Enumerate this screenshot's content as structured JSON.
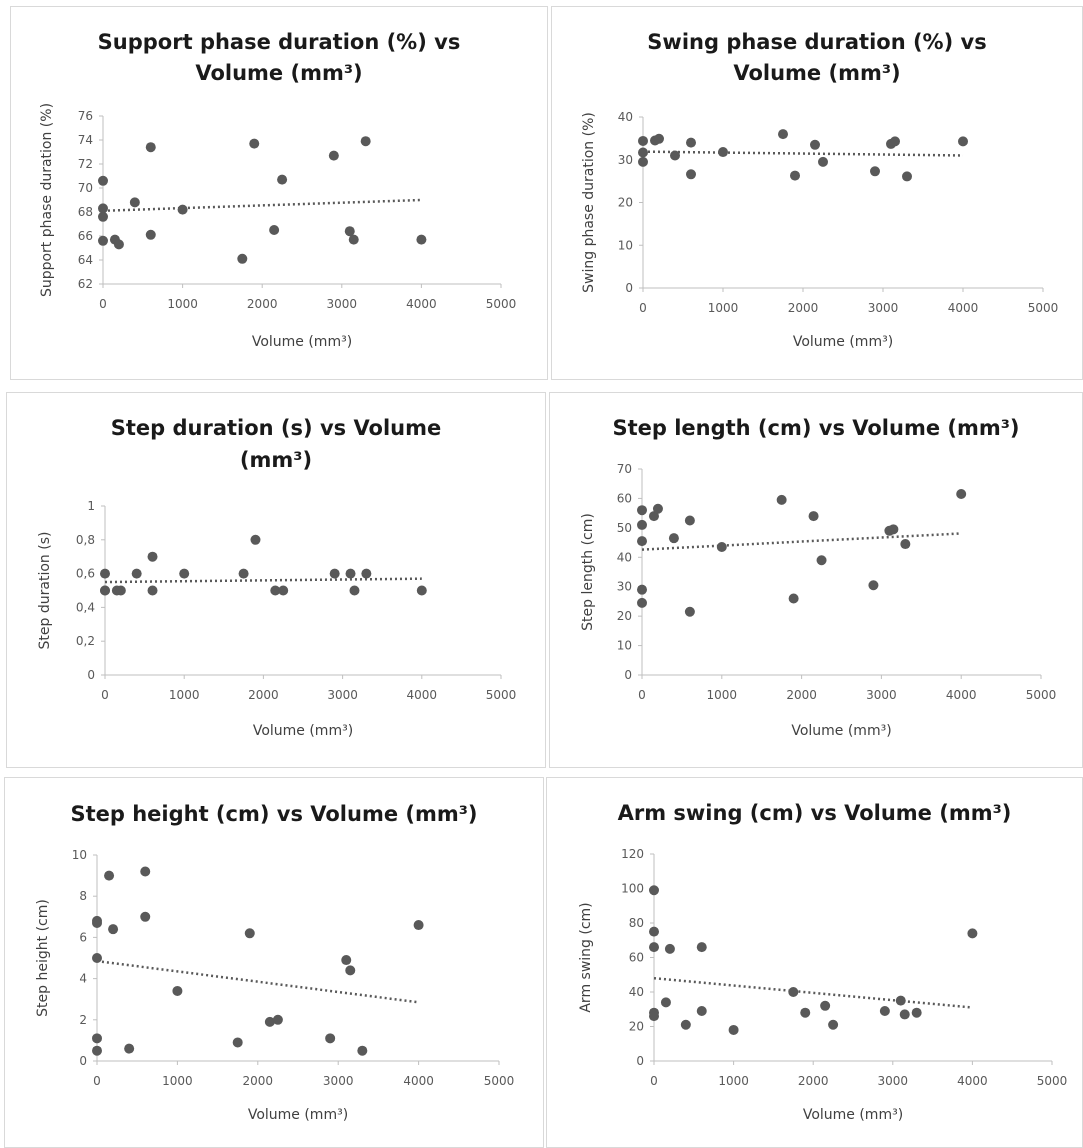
{
  "chart_data": [
    {
      "type": "scatter",
      "title_lines": [
        "Support phase duration (%) vs",
        "Volume (mm³)"
      ],
      "xlabel": "Volume (mm³)",
      "ylabel": "Support phase duration (%)",
      "xlim": [
        0,
        5000
      ],
      "x_ticks": [
        "0",
        "1000",
        "2000",
        "3000",
        "4000",
        "5000"
      ],
      "ylim": [
        62,
        76
      ],
      "y_ticks": [
        "62",
        "64",
        "66",
        "68",
        "70",
        "72",
        "74",
        "76"
      ],
      "trendline": {
        "style": "dotted",
        "x": [
          0,
          4000
        ],
        "y": [
          68.1,
          69.0
        ]
      },
      "points": [
        [
          0,
          70.6
        ],
        [
          0,
          68.3
        ],
        [
          0,
          67.6
        ],
        [
          0,
          65.6
        ],
        [
          150,
          65.7
        ],
        [
          200,
          65.3
        ],
        [
          400,
          68.8
        ],
        [
          600,
          66.1
        ],
        [
          600,
          73.4
        ],
        [
          1000,
          68.2
        ],
        [
          1750,
          64.1
        ],
        [
          1900,
          73.7
        ],
        [
          2150,
          66.5
        ],
        [
          2250,
          70.7
        ],
        [
          2900,
          72.7
        ],
        [
          3100,
          66.4
        ],
        [
          3150,
          65.7
        ],
        [
          3300,
          73.9
        ],
        [
          4000,
          65.7
        ]
      ]
    },
    {
      "type": "scatter",
      "title_lines": [
        "Swing phase duration (%) vs",
        "Volume (mm³)"
      ],
      "xlabel": "Volume (mm³)",
      "ylabel": "Swing phase duration (%)",
      "xlim": [
        0,
        5000
      ],
      "x_ticks": [
        "0",
        "1000",
        "2000",
        "3000",
        "4000",
        "5000"
      ],
      "ylim": [
        0,
        40
      ],
      "y_ticks": [
        "0",
        "10",
        "20",
        "30",
        "40"
      ],
      "trendline": {
        "style": "dotted",
        "x": [
          0,
          4000
        ],
        "y": [
          31.9,
          31.0
        ]
      },
      "points": [
        [
          0,
          34.4
        ],
        [
          0,
          31.7
        ],
        [
          0,
          29.5
        ],
        [
          150,
          34.5
        ],
        [
          200,
          34.9
        ],
        [
          400,
          31.0
        ],
        [
          600,
          34.0
        ],
        [
          600,
          26.6
        ],
        [
          1000,
          31.8
        ],
        [
          1750,
          36.0
        ],
        [
          1900,
          26.3
        ],
        [
          2150,
          33.5
        ],
        [
          2250,
          29.5
        ],
        [
          2900,
          27.3
        ],
        [
          3100,
          33.7
        ],
        [
          3150,
          34.3
        ],
        [
          3300,
          26.1
        ],
        [
          4000,
          34.3
        ]
      ]
    },
    {
      "type": "scatter",
      "title_lines": [
        "Step duration (s) vs Volume",
        "(mm³)"
      ],
      "xlabel": "Volume (mm³)",
      "ylabel": "Step duration (s)",
      "xlim": [
        0,
        5000
      ],
      "x_ticks": [
        "0",
        "1000",
        "2000",
        "3000",
        "4000",
        "5000"
      ],
      "ylim": [
        0,
        1
      ],
      "y_ticks": [
        "0",
        "0,2",
        "0,4",
        "0,6",
        "0,8",
        "1"
      ],
      "trendline": {
        "style": "dotted",
        "x": [
          0,
          4000
        ],
        "y": [
          0.55,
          0.57
        ]
      },
      "points": [
        [
          0,
          0.6
        ],
        [
          0,
          0.5
        ],
        [
          0,
          0.5
        ],
        [
          150,
          0.5
        ],
        [
          200,
          0.5
        ],
        [
          400,
          0.6
        ],
        [
          600,
          0.7
        ],
        [
          600,
          0.5
        ],
        [
          1000,
          0.6
        ],
        [
          1750,
          0.6
        ],
        [
          1900,
          0.8
        ],
        [
          2150,
          0.5
        ],
        [
          2250,
          0.5
        ],
        [
          2900,
          0.6
        ],
        [
          3100,
          0.6
        ],
        [
          3150,
          0.5
        ],
        [
          3300,
          0.6
        ],
        [
          4000,
          0.5
        ]
      ]
    },
    {
      "type": "scatter",
      "title_lines": [
        "Step length (cm) vs Volume (mm³)"
      ],
      "xlabel": "Volume (mm³)",
      "ylabel": "Step length (cm)",
      "xlim": [
        0,
        5000
      ],
      "x_ticks": [
        "0",
        "1000",
        "2000",
        "3000",
        "4000",
        "5000"
      ],
      "ylim": [
        0,
        70
      ],
      "y_ticks": [
        "0",
        "10",
        "20",
        "30",
        "40",
        "50",
        "60",
        "70"
      ],
      "trendline": {
        "style": "dotted",
        "x": [
          0,
          4000
        ],
        "y": [
          42.6,
          48.1
        ]
      },
      "points": [
        [
          0,
          56
        ],
        [
          0,
          51
        ],
        [
          0,
          45.5
        ],
        [
          0,
          29
        ],
        [
          0,
          24.5
        ],
        [
          150,
          54
        ],
        [
          200,
          56.5
        ],
        [
          400,
          46.5
        ],
        [
          600,
          52.5
        ],
        [
          600,
          21.5
        ],
        [
          1000,
          43.5
        ],
        [
          1750,
          59.5
        ],
        [
          1900,
          26
        ],
        [
          2150,
          54
        ],
        [
          2250,
          39
        ],
        [
          2900,
          30.5
        ],
        [
          3100,
          49
        ],
        [
          3150,
          49.5
        ],
        [
          3300,
          44.5
        ],
        [
          4000,
          61.5
        ]
      ]
    },
    {
      "type": "scatter",
      "title_lines": [
        "Step height (cm) vs Volume (mm³)"
      ],
      "xlabel": "Volume (mm³)",
      "ylabel": "Step height (cm)",
      "xlim": [
        0,
        5000
      ],
      "x_ticks": [
        "0",
        "1000",
        "2000",
        "3000",
        "4000",
        "5000"
      ],
      "ylim": [
        0,
        10
      ],
      "y_ticks": [
        "0",
        "2",
        "4",
        "6",
        "8",
        "10"
      ],
      "trendline": {
        "style": "dotted",
        "x": [
          0,
          4000
        ],
        "y": [
          4.85,
          2.85
        ]
      },
      "points": [
        [
          0,
          6.8
        ],
        [
          0,
          6.7
        ],
        [
          0,
          5.0
        ],
        [
          0,
          1.1
        ],
        [
          0,
          0.5
        ],
        [
          150,
          9.0
        ],
        [
          200,
          6.4
        ],
        [
          400,
          0.6
        ],
        [
          600,
          9.2
        ],
        [
          600,
          7.0
        ],
        [
          1000,
          3.4
        ],
        [
          1750,
          0.9
        ],
        [
          1900,
          6.2
        ],
        [
          2150,
          1.9
        ],
        [
          2250,
          2.0
        ],
        [
          2900,
          1.1
        ],
        [
          3100,
          4.9
        ],
        [
          3150,
          4.4
        ],
        [
          3300,
          0.5
        ],
        [
          4000,
          6.6
        ]
      ]
    },
    {
      "type": "scatter",
      "title_lines": [
        "Arm swing (cm) vs Volume (mm³)"
      ],
      "xlabel": "Volume (mm³)",
      "ylabel": "Arm swing (cm)",
      "xlim": [
        0,
        5000
      ],
      "x_ticks": [
        "0",
        "1000",
        "2000",
        "3000",
        "4000",
        "5000"
      ],
      "ylim": [
        0,
        120
      ],
      "y_ticks": [
        "0",
        "20",
        "40",
        "60",
        "80",
        "100",
        "120"
      ],
      "trendline": {
        "style": "dotted",
        "x": [
          0,
          4000
        ],
        "y": [
          48,
          31
        ]
      },
      "points": [
        [
          0,
          99
        ],
        [
          0,
          75
        ],
        [
          0,
          66
        ],
        [
          0,
          28
        ],
        [
          0,
          26
        ],
        [
          150,
          34
        ],
        [
          200,
          65
        ],
        [
          400,
          21
        ],
        [
          600,
          66
        ],
        [
          600,
          29
        ],
        [
          1000,
          18
        ],
        [
          1750,
          40
        ],
        [
          1900,
          28
        ],
        [
          2150,
          32
        ],
        [
          2250,
          21
        ],
        [
          2900,
          29
        ],
        [
          3100,
          35
        ],
        [
          3150,
          27
        ],
        [
          3300,
          28
        ],
        [
          4000,
          74
        ]
      ]
    }
  ]
}
